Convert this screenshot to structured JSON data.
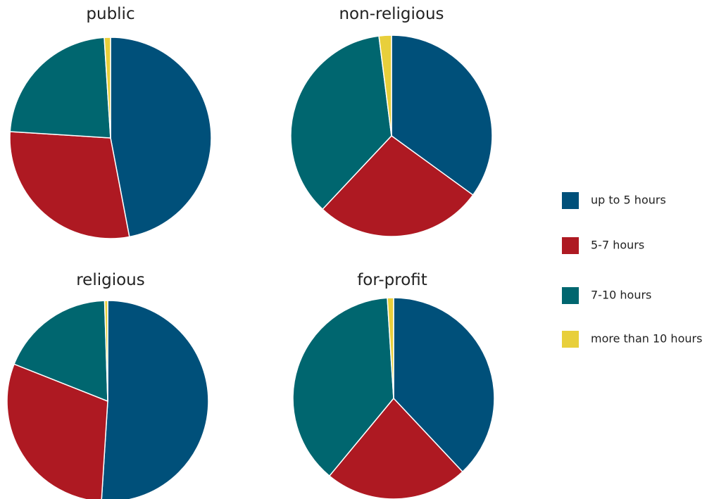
{
  "colors": {
    "up_to_5": "#00507a",
    "h5_7": "#ae1922",
    "h7_10": "#00666f",
    "more_10": "#e8cf3b",
    "slice_edge": "#ffffff"
  },
  "legend": {
    "placement": "right",
    "items": [
      {
        "label": "up to 5 hours",
        "color": "#00507a"
      },
      {
        "label": "5-7 hours",
        "color": "#ae1922"
      },
      {
        "label": "7-10 hours",
        "color": "#00666f"
      },
      {
        "label": "more than 10 hours",
        "color": "#e8cf3b"
      }
    ]
  },
  "chart_data": [
    {
      "type": "pie",
      "title": "public",
      "labels": [
        "up to 5 hours",
        "5-7 hours",
        "7-10 hours",
        "more than 10 hours"
      ],
      "values": [
        47,
        29,
        23,
        1
      ]
    },
    {
      "type": "pie",
      "title": "non-religious",
      "labels": [
        "up to 5 hours",
        "5-7 hours",
        "7-10 hours",
        "more than 10 hours"
      ],
      "values": [
        35,
        27,
        36,
        2
      ]
    },
    {
      "type": "pie",
      "title": "religious",
      "labels": [
        "up to 5 hours",
        "5-7 hours",
        "7-10 hours",
        "more than 10 hours"
      ],
      "values": [
        51,
        30,
        18.5,
        0.5
      ]
    },
    {
      "type": "pie",
      "title": "for-profit",
      "labels": [
        "up to 5 hours",
        "5-7 hours",
        "7-10 hours",
        "more than 10 hours"
      ],
      "values": [
        38,
        23,
        38,
        1
      ]
    }
  ]
}
